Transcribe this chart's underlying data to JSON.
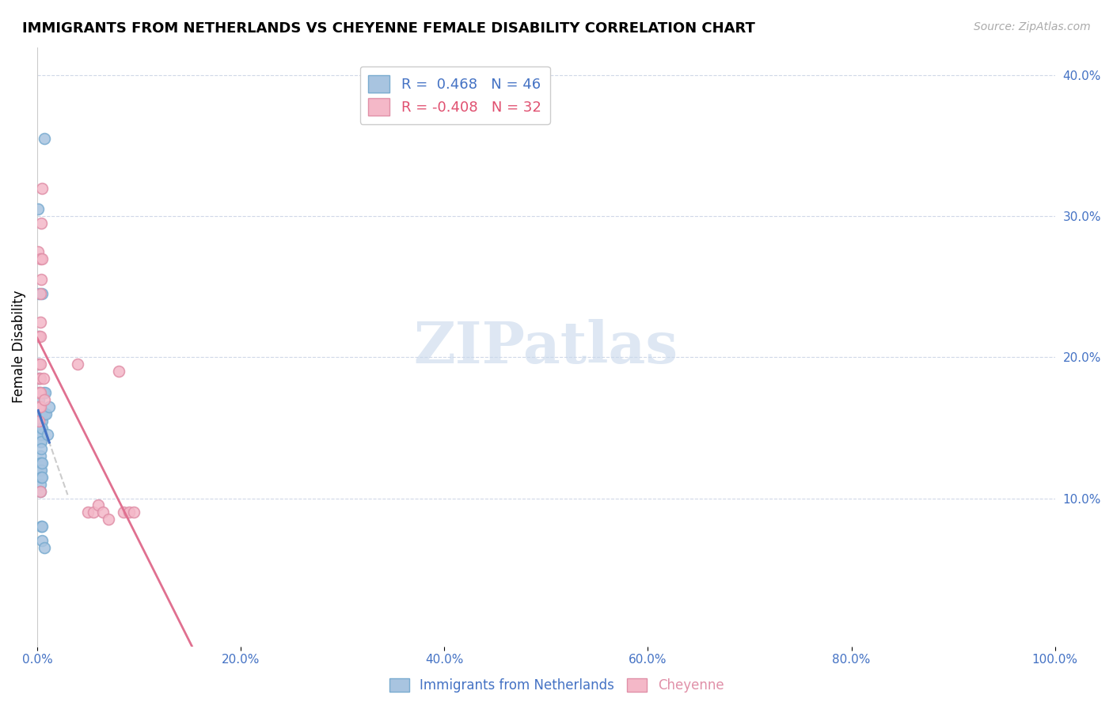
{
  "title": "IMMIGRANTS FROM NETHERLANDS VS CHEYENNE FEMALE DISABILITY CORRELATION CHART",
  "source": "Source: ZipAtlas.com",
  "ylabel": "Female Disability",
  "ylabel_right_ticks": [
    "10.0%",
    "20.0%",
    "30.0%",
    "40.0%"
  ],
  "ylabel_right_vals": [
    0.1,
    0.2,
    0.3,
    0.4
  ],
  "xlim": [
    0.0,
    1.0
  ],
  "ylim": [
    -0.005,
    0.42
  ],
  "blue_scatter": [
    [
      0.001,
      0.305
    ],
    [
      0.001,
      0.195
    ],
    [
      0.002,
      0.245
    ],
    [
      0.002,
      0.215
    ],
    [
      0.002,
      0.185
    ],
    [
      0.002,
      0.175
    ],
    [
      0.002,
      0.17
    ],
    [
      0.002,
      0.165
    ],
    [
      0.002,
      0.16
    ],
    [
      0.003,
      0.175
    ],
    [
      0.003,
      0.165
    ],
    [
      0.003,
      0.16
    ],
    [
      0.003,
      0.155
    ],
    [
      0.003,
      0.15
    ],
    [
      0.003,
      0.145
    ],
    [
      0.003,
      0.14
    ],
    [
      0.003,
      0.13
    ],
    [
      0.003,
      0.125
    ],
    [
      0.003,
      0.12
    ],
    [
      0.003,
      0.11
    ],
    [
      0.003,
      0.105
    ],
    [
      0.004,
      0.155
    ],
    [
      0.004,
      0.15
    ],
    [
      0.004,
      0.145
    ],
    [
      0.004,
      0.14
    ],
    [
      0.004,
      0.135
    ],
    [
      0.004,
      0.125
    ],
    [
      0.004,
      0.12
    ],
    [
      0.004,
      0.115
    ],
    [
      0.004,
      0.08
    ],
    [
      0.005,
      0.245
    ],
    [
      0.005,
      0.16
    ],
    [
      0.005,
      0.155
    ],
    [
      0.005,
      0.15
    ],
    [
      0.005,
      0.125
    ],
    [
      0.005,
      0.115
    ],
    [
      0.005,
      0.08
    ],
    [
      0.005,
      0.07
    ],
    [
      0.006,
      0.175
    ],
    [
      0.007,
      0.355
    ],
    [
      0.007,
      0.16
    ],
    [
      0.007,
      0.065
    ],
    [
      0.008,
      0.175
    ],
    [
      0.009,
      0.16
    ],
    [
      0.01,
      0.145
    ],
    [
      0.012,
      0.165
    ]
  ],
  "pink_scatter": [
    [
      0.001,
      0.275
    ],
    [
      0.002,
      0.215
    ],
    [
      0.002,
      0.195
    ],
    [
      0.002,
      0.185
    ],
    [
      0.002,
      0.175
    ],
    [
      0.002,
      0.165
    ],
    [
      0.002,
      0.155
    ],
    [
      0.003,
      0.27
    ],
    [
      0.003,
      0.245
    ],
    [
      0.003,
      0.225
    ],
    [
      0.003,
      0.215
    ],
    [
      0.003,
      0.195
    ],
    [
      0.003,
      0.185
    ],
    [
      0.003,
      0.175
    ],
    [
      0.003,
      0.165
    ],
    [
      0.003,
      0.105
    ],
    [
      0.004,
      0.295
    ],
    [
      0.004,
      0.255
    ],
    [
      0.005,
      0.32
    ],
    [
      0.005,
      0.27
    ],
    [
      0.006,
      0.185
    ],
    [
      0.007,
      0.17
    ],
    [
      0.04,
      0.195
    ],
    [
      0.05,
      0.09
    ],
    [
      0.055,
      0.09
    ],
    [
      0.06,
      0.095
    ],
    [
      0.065,
      0.09
    ],
    [
      0.07,
      0.085
    ],
    [
      0.08,
      0.19
    ],
    [
      0.085,
      0.09
    ],
    [
      0.09,
      0.09
    ],
    [
      0.095,
      0.09
    ]
  ],
  "blue_face_color": "#a8c4e0",
  "blue_edge_color": "#7aacd0",
  "pink_face_color": "#f4b8c8",
  "pink_edge_color": "#e090a8",
  "blue_line_color": "#4472c4",
  "pink_line_color": "#e07090",
  "gray_dashed_color": "#cccccc",
  "marker_size": 10,
  "background_color": "#ffffff",
  "watermark": "ZIPatlas",
  "watermark_color": "#c8d8ec",
  "tick_color": "#4472c4",
  "legend_text_blue": "#4472c4",
  "legend_text_pink": "#e05070",
  "legend_label_blue": "R =  0.468   N = 46",
  "legend_label_pink": "R = -0.408   N = 32",
  "bottom_legend_label_blue": "Immigrants from Netherlands",
  "bottom_legend_label_pink": "Cheyenne"
}
